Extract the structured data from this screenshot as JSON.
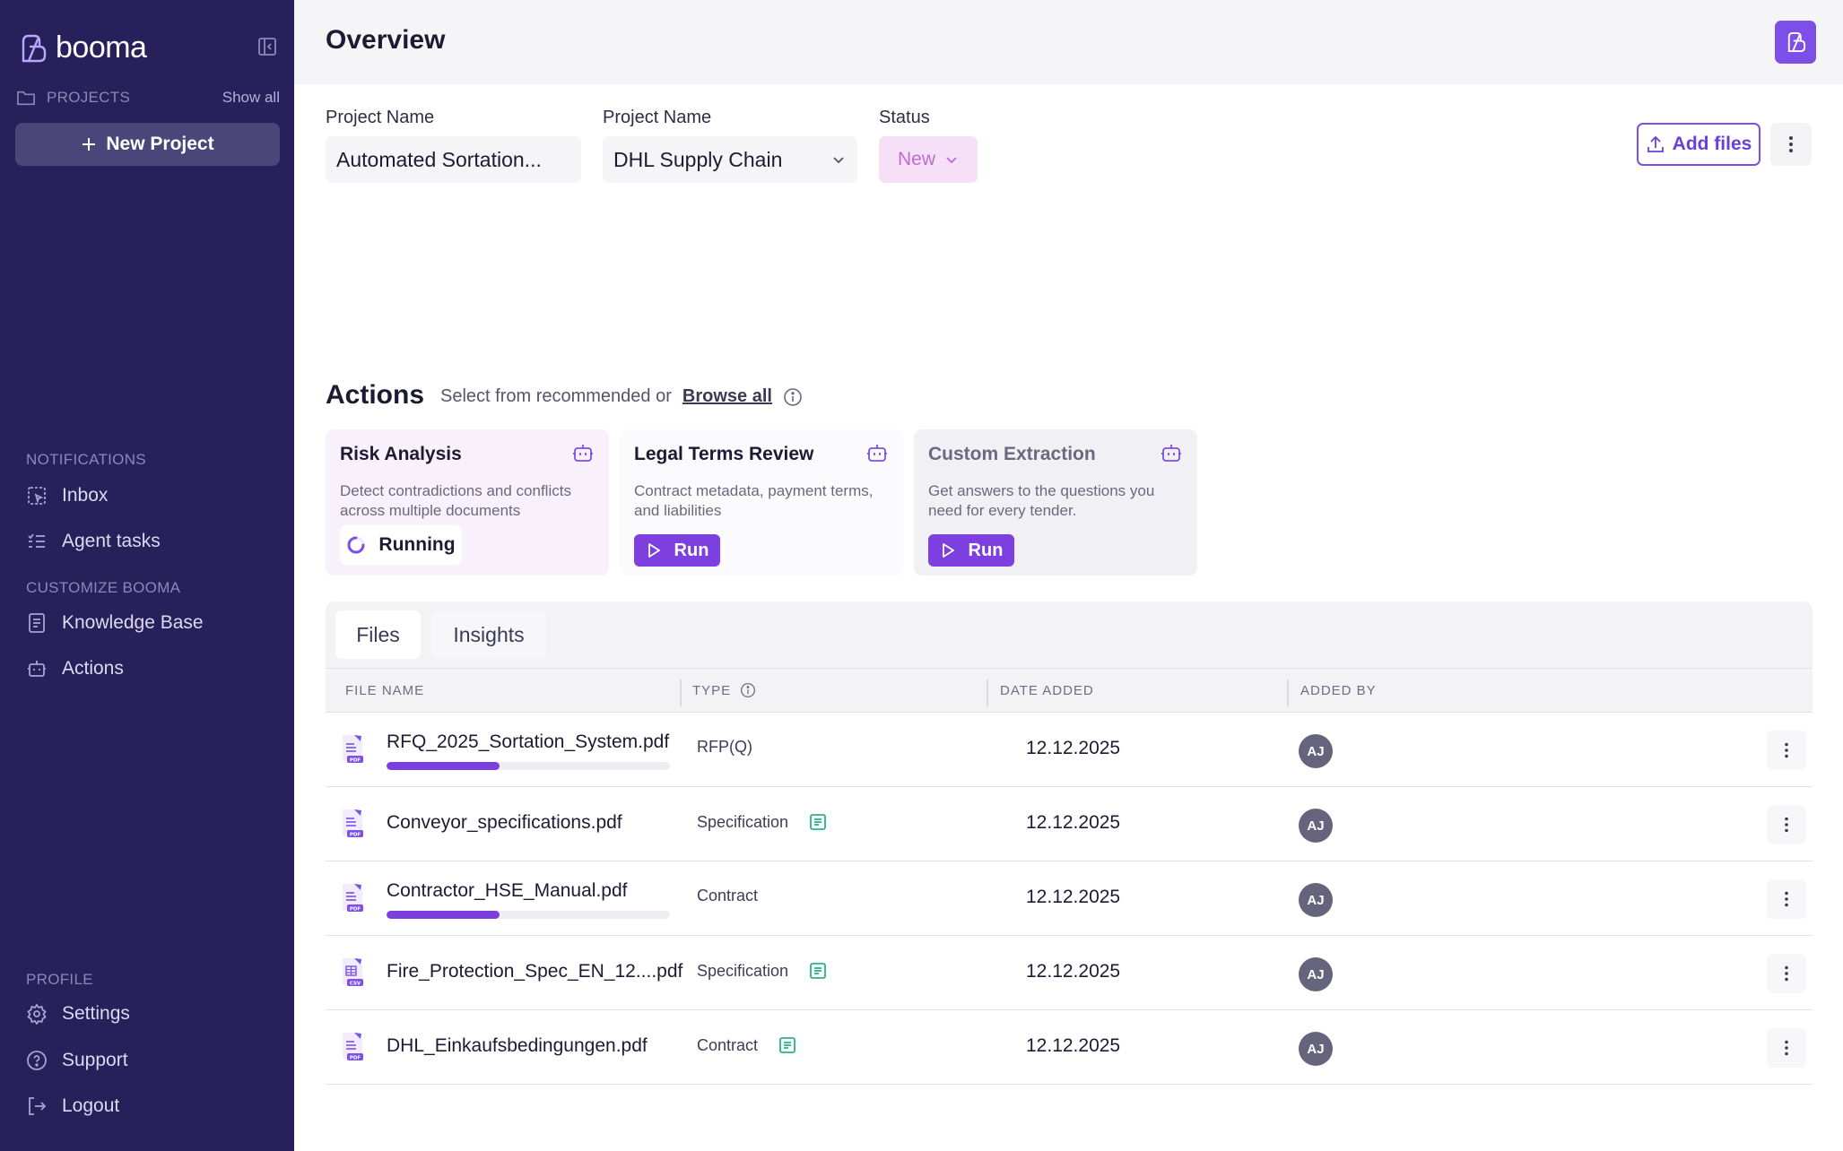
{
  "sidebar": {
    "logo_text": "booma",
    "projects_label": "PROJECTS",
    "show_all": "Show all",
    "new_project": "New Project",
    "notifications_label": "NOTIFICATIONS",
    "inbox": "Inbox",
    "agent_tasks": "Agent tasks",
    "customize_label": "CUSTOMIZE BOOMA",
    "knowledge_base": "Knowledge Base",
    "actions": "Actions",
    "profile_label": "PROFILE",
    "settings": "Settings",
    "support": "Support",
    "logout": "Logout"
  },
  "header": {
    "title": "Overview"
  },
  "fields": {
    "project_name_label": "Project Name",
    "project_name_value": "Automated Sortation...",
    "client_label": "Project Name",
    "client_value": "DHL Supply Chain",
    "status_label": "Status",
    "status_value": "New",
    "add_files": "Add files"
  },
  "actions_section": {
    "title": "Actions",
    "subtitle": "Select from recommended or",
    "browse_all": "Browse all",
    "cards": [
      {
        "title": "Risk Analysis",
        "desc": "Detect contradictions and conflicts across multiple documents",
        "state": "Running"
      },
      {
        "title": "Legal Terms Review",
        "desc": "Contract metadata, payment terms, and liabilities",
        "button": "Run"
      },
      {
        "title": "Custom Extraction",
        "desc": "Get answers to the questions you need for every tender.",
        "button": "Run"
      }
    ]
  },
  "tabs": [
    "Files",
    "Insights"
  ],
  "table": {
    "columns": [
      "FILE NAME",
      "TYPE",
      "DATE ADDED",
      "ADDED BY"
    ],
    "rows": [
      {
        "name": "RFQ_2025_Sortation_System.pdf",
        "type": "RFP(Q)",
        "date": "12.12.2025",
        "added_by": "AJ",
        "file_kind": "pdf",
        "progress": 0.4,
        "has_doc_icon": false
      },
      {
        "name": "Conveyor_specifications.pdf",
        "type": "Specification",
        "date": "12.12.2025",
        "added_by": "AJ",
        "file_kind": "pdf",
        "progress": null,
        "has_doc_icon": true
      },
      {
        "name": "Contractor_HSE_Manual.pdf",
        "type": "Contract",
        "date": "12.12.2025",
        "added_by": "AJ",
        "file_kind": "pdf",
        "progress": 0.4,
        "has_doc_icon": false
      },
      {
        "name": "Fire_Protection_Spec_EN_12....pdf",
        "type": "Specification",
        "date": "12.12.2025",
        "added_by": "AJ",
        "file_kind": "csv",
        "progress": null,
        "has_doc_icon": true
      },
      {
        "name": "DHL_Einkaufsbedingungen.pdf",
        "type": "Contract",
        "date": "12.12.2025",
        "added_by": "AJ",
        "file_kind": "pdf",
        "progress": null,
        "has_doc_icon": true
      }
    ]
  },
  "colors": {
    "sidebar_bg": "#27205a",
    "accent": "#7d4ee8",
    "status_bg": "#f6e0f7",
    "status_text": "#c26ad3",
    "doc_icon": "#2bb38a"
  }
}
